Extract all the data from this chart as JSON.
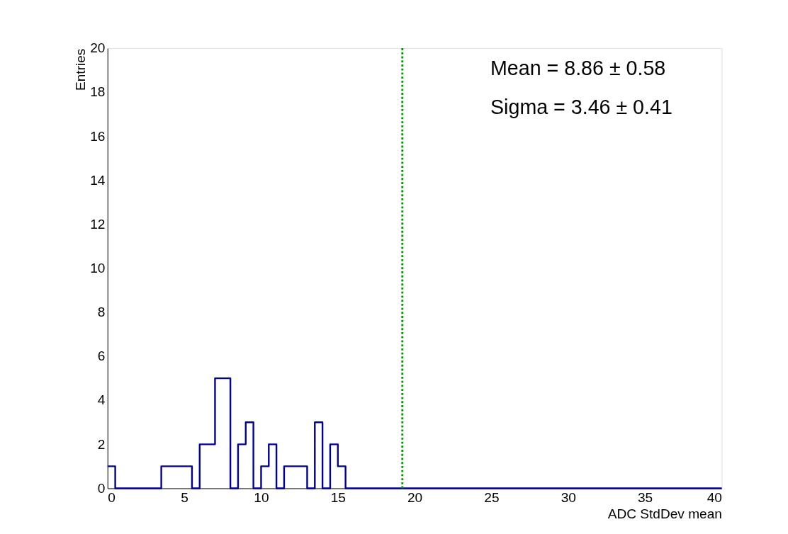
{
  "chart_data": {
    "type": "histogram",
    "xlabel": "ADC StdDev mean",
    "ylabel": "Entries",
    "bins": [
      0,
      0.5,
      1,
      1.5,
      2,
      2.5,
      3,
      3.5,
      4,
      4.5,
      5,
      5.5,
      6,
      6.5,
      7,
      7.5,
      8,
      8.5,
      9,
      9.5,
      10,
      10.5,
      11,
      11.5,
      12,
      12.5,
      13,
      13.5,
      14,
      14.5,
      15,
      15.5,
      16,
      16.5,
      17,
      17.5,
      18,
      18.5,
      19,
      19.5,
      20,
      20.5,
      21,
      21.5,
      22,
      22.5,
      23,
      23.5,
      24,
      24.5,
      25,
      25.5,
      26,
      26.5,
      27,
      27.5,
      28,
      28.5,
      29,
      29.5,
      30,
      30.5,
      31,
      31.5,
      32,
      32.5,
      33,
      33.5,
      34,
      34.5,
      35,
      35.5,
      36,
      36.5,
      37,
      37.5,
      38,
      38.5,
      39,
      39.5,
      40
    ],
    "values": [
      1,
      0,
      0,
      0,
      0,
      0,
      0,
      1,
      1,
      1,
      1,
      0,
      2,
      2,
      5,
      5,
      0,
      2,
      3,
      0,
      1,
      2,
      0,
      1,
      1,
      1,
      0,
      3,
      0,
      2,
      1,
      0,
      0,
      0,
      0,
      0,
      0,
      0,
      0,
      0,
      0,
      0,
      0,
      0,
      0,
      0,
      0,
      0,
      0,
      0,
      0,
      0,
      0,
      0,
      0,
      0,
      0,
      0,
      0,
      0,
      0,
      0,
      0,
      0,
      0,
      0,
      0,
      0,
      0,
      0,
      0,
      0,
      0,
      0,
      0,
      0,
      0,
      0,
      0,
      0
    ],
    "color": "#000099",
    "xlim": [
      0,
      40
    ],
    "xticks": [
      0,
      5,
      10,
      15,
      20,
      25,
      30,
      35,
      40
    ],
    "ylim": [
      0,
      20
    ],
    "yticks": [
      0,
      2,
      4,
      6,
      8,
      10,
      12,
      14,
      16,
      18,
      20
    ],
    "grid": false,
    "ref_lines": [
      {
        "axis": "x",
        "value": 19.2,
        "color": "#009900",
        "line_style": "dotted"
      }
    ],
    "annotations": [
      "Mean = 8.86 ± 0.58",
      "Sigma = 3.46 ± 0.41"
    ]
  }
}
